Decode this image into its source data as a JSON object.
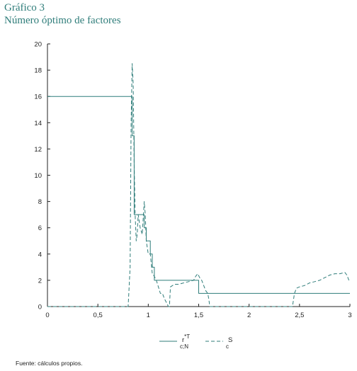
{
  "header": {
    "line1": "Gráfico 3",
    "line2": "Número óptimo de factores"
  },
  "footer": {
    "source": "Fuente: cálculos propios."
  },
  "colors": {
    "series": "#2f7d7a",
    "axis": "#222222",
    "title": "#2f7d7a"
  },
  "chart_data": {
    "type": "line",
    "xlim": [
      0,
      3
    ],
    "ylim": [
      0,
      20
    ],
    "xticks": [
      {
        "value": 0,
        "label": "0"
      },
      {
        "value": 0.5,
        "label": "0,5"
      },
      {
        "value": 1,
        "label": "1"
      },
      {
        "value": 1.5,
        "label": "1,5"
      },
      {
        "value": 2,
        "label": "2"
      },
      {
        "value": 2.5,
        "label": "2,5"
      },
      {
        "value": 3,
        "label": "3"
      }
    ],
    "yticks": [
      {
        "value": 0,
        "label": "0"
      },
      {
        "value": 2,
        "label": "2"
      },
      {
        "value": 4,
        "label": "4"
      },
      {
        "value": 6,
        "label": "6"
      },
      {
        "value": 8,
        "label": "8"
      },
      {
        "value": 10,
        "label": "10"
      },
      {
        "value": 12,
        "label": "12"
      },
      {
        "value": 14,
        "label": "14"
      },
      {
        "value": 16,
        "label": "16"
      },
      {
        "value": 18,
        "label": "18"
      },
      {
        "value": 20,
        "label": "20"
      }
    ],
    "grid": false,
    "legend_position": "bottom-center",
    "series": [
      {
        "name": "r*T c;N",
        "legend_main": "r",
        "legend_sup": "*T",
        "legend_sub": "c;N",
        "style": "solid",
        "step": true,
        "x": [
          0,
          0.82,
          0.84,
          0.86,
          0.88,
          0.9,
          0.92,
          0.94,
          0.96,
          0.98,
          1.0,
          1.02,
          1.04,
          1.06,
          1.48,
          1.5,
          3.0
        ],
        "y": [
          16,
          16,
          13,
          7,
          7,
          7,
          7,
          7,
          6,
          5,
          5,
          4,
          3,
          2,
          2,
          1,
          1
        ]
      },
      {
        "name": "S c",
        "legend_main": "S",
        "legend_sup": "",
        "legend_sub": "c",
        "style": "dashed",
        "step": false,
        "x": [
          0,
          0.8,
          0.81,
          0.82,
          0.83,
          0.84,
          0.85,
          0.86,
          0.87,
          0.88,
          0.89,
          0.9,
          0.92,
          0.94,
          0.96,
          0.97,
          0.98,
          1.0,
          1.02,
          1.04,
          1.06,
          1.08,
          1.1,
          1.12,
          1.14,
          1.16,
          1.18,
          1.2,
          1.21,
          1.22,
          1.24,
          1.26,
          1.3,
          1.35,
          1.4,
          1.45,
          1.47,
          1.49,
          1.51,
          1.53,
          1.55,
          1.57,
          1.59,
          1.6,
          1.61,
          1.63,
          1.7,
          2.0,
          2.43,
          2.45,
          2.47,
          2.5,
          2.55,
          2.6,
          2.65,
          2.7,
          2.75,
          2.8,
          2.85,
          2.9,
          2.95,
          2.97,
          2.99
        ],
        "y": [
          0,
          0,
          1.5,
          3,
          14,
          18.5,
          17,
          11,
          7,
          5,
          5.5,
          7,
          6,
          5.5,
          8,
          7,
          5,
          4,
          4,
          2.5,
          2.3,
          2,
          1.5,
          1,
          1,
          0.6,
          0.3,
          0,
          0,
          1.5,
          1.6,
          1.7,
          1.7,
          1.8,
          1.9,
          2,
          2.3,
          2.5,
          2.2,
          2,
          1.6,
          1.2,
          1,
          0.6,
          0,
          0,
          0,
          0,
          0,
          1,
          1.4,
          1.5,
          1.6,
          1.8,
          1.9,
          2,
          2.2,
          2.4,
          2.5,
          2.5,
          2.6,
          2.4,
          2
        ]
      }
    ]
  }
}
